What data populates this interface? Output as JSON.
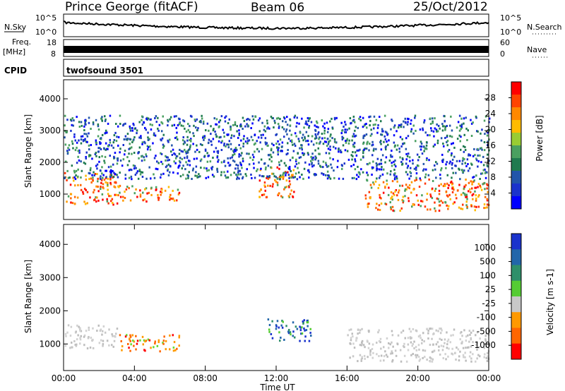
{
  "header": {
    "station": "Prince George (fitACF)",
    "beam": "Beam 06",
    "date": "25/Oct/2012"
  },
  "strips": {
    "nsky_label": "N.Sky",
    "nsearch_label": "N.Search",
    "nsky_ticks": [
      "10^5",
      "10^0"
    ],
    "nsearch_ticks": [
      "10^5",
      "10^0"
    ],
    "freq_label_line1": "Freq.",
    "freq_label_line2": "[MHz]",
    "freq_ticks": [
      "18",
      "8"
    ],
    "nave_label": "Nave",
    "nave_ticks": [
      "60",
      "0"
    ],
    "cpid_label": "CPID",
    "cpid_value": "twofsound 3501"
  },
  "chart_data": [
    {
      "type": "heatmap",
      "name": "Power",
      "ylabel": "Slant Range [km]",
      "yticks": [
        1000,
        2000,
        3000,
        4000
      ],
      "ylim": [
        200,
        4600
      ],
      "xlim_hours": [
        0,
        24
      ],
      "colorbar_label": "Power [dB]",
      "colorbar_ticks": [
        "28",
        "24",
        "20",
        "16",
        "12",
        "8",
        "4"
      ],
      "colorbar_colors": [
        "#ff0000",
        "#ff4400",
        "#ff8800",
        "#ffbb00",
        "#99cc33",
        "#4aa060",
        "#1f7a4f",
        "#2255aa",
        "#1a33cc",
        "#0000ff"
      ],
      "echo_regions": [
        {
          "t_start": 0.0,
          "t_end": 3.0,
          "r_min": 700,
          "r_max": 1700,
          "level": "high"
        },
        {
          "t_start": 3.0,
          "t_end": 6.5,
          "r_min": 800,
          "r_max": 1300,
          "level": "high"
        },
        {
          "t_start": 11.0,
          "t_end": 13.0,
          "r_min": 900,
          "r_max": 1900,
          "level": "high"
        },
        {
          "t_start": 17.0,
          "t_end": 24.0,
          "r_min": 500,
          "r_max": 1500,
          "level": "high"
        },
        {
          "t_start": 0.0,
          "t_end": 24.0,
          "r_min": 1500,
          "r_max": 3500,
          "level": "low"
        }
      ]
    },
    {
      "type": "heatmap",
      "name": "Velocity",
      "ylabel": "Slant Range [km]",
      "yticks": [
        1000,
        2000,
        3000,
        4000
      ],
      "ylim": [
        200,
        4600
      ],
      "xlim_hours": [
        0,
        24
      ],
      "xticks": [
        "00:00",
        "04:00",
        "08:00",
        "12:00",
        "16:00",
        "20:00",
        "00:00"
      ],
      "xlabel": "Time UT",
      "colorbar_label": "Velocity [m s-1]",
      "colorbar_ticks": [
        "1000",
        "500",
        "100",
        "25",
        "-25",
        "-100",
        "-500",
        "-1000"
      ],
      "colorbar_colors": [
        "#1a33cc",
        "#2266aa",
        "#2f8f6a",
        "#55cc33",
        "#c8c8c8",
        "#ff9900",
        "#ff6600",
        "#ff0000"
      ],
      "echo_regions": [
        {
          "t_start": 0.0,
          "t_end": 3.0,
          "r_min": 900,
          "r_max": 1600,
          "level": "ground"
        },
        {
          "t_start": 3.0,
          "t_end": 6.5,
          "r_min": 800,
          "r_max": 1300,
          "level": "negative"
        },
        {
          "t_start": 11.5,
          "t_end": 14.0,
          "r_min": 1100,
          "r_max": 1800,
          "level": "positive"
        },
        {
          "t_start": 16.0,
          "t_end": 24.0,
          "r_min": 500,
          "r_max": 1500,
          "level": "ground"
        }
      ]
    }
  ]
}
